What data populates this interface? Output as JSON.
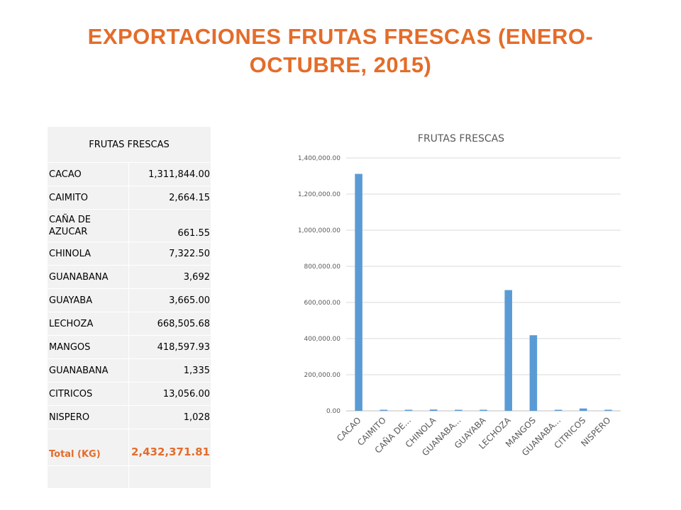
{
  "slide": {
    "title": "EXPORTACIONES FRUTAS FRESCAS (ENERO-OCTUBRE, 2015)"
  },
  "table": {
    "header": "FRUTAS FRESCAS",
    "rows": [
      {
        "name": "CACAO",
        "value": "1,311,844.00"
      },
      {
        "name": "CAIMITO",
        "value": "2,664.15"
      },
      {
        "name": "CAÑA DE AZUCAR",
        "value": "661.55"
      },
      {
        "name": "CHINOLA",
        "value": "7,322.50"
      },
      {
        "name": "GUANABANA",
        "value": "3,692"
      },
      {
        "name": "GUAYABA",
        "value": "3,665.00"
      },
      {
        "name": "LECHOZA",
        "value": "668,505.68"
      },
      {
        "name": "MANGOS",
        "value": "418,597.93"
      },
      {
        "name": "GUANABANA",
        "value": "1,335"
      },
      {
        "name": "CITRICOS",
        "value": "13,056.00"
      },
      {
        "name": "NISPERO",
        "value": "1,028"
      }
    ],
    "total_label": "Total (KG)",
    "total_value": "2,432,371.81"
  },
  "chart_data": {
    "type": "bar",
    "title": "FRUTAS FRESCAS",
    "categories": [
      "CACAO",
      "CAIMITO",
      "CAÑA DE...",
      "CHINOLA",
      "GUANABA...",
      "GUAYABA",
      "LECHOZA",
      "MANGOS",
      "GUANABA...",
      "CITRICOS",
      "NISPERO"
    ],
    "values": [
      1311844.0,
      2664.15,
      661.55,
      7322.5,
      3692,
      3665.0,
      668505.68,
      418597.93,
      1335,
      13056.0,
      1028
    ],
    "ylim": [
      0,
      1400000
    ],
    "yticks": [
      "0.00",
      "200,000.00",
      "400,000.00",
      "600,000.00",
      "800,000.00",
      "1,000,000.00",
      "1,200,000.00",
      "1,400,000.00"
    ],
    "grid": true,
    "legend": "none",
    "bar_color": "#5b9bd5"
  }
}
